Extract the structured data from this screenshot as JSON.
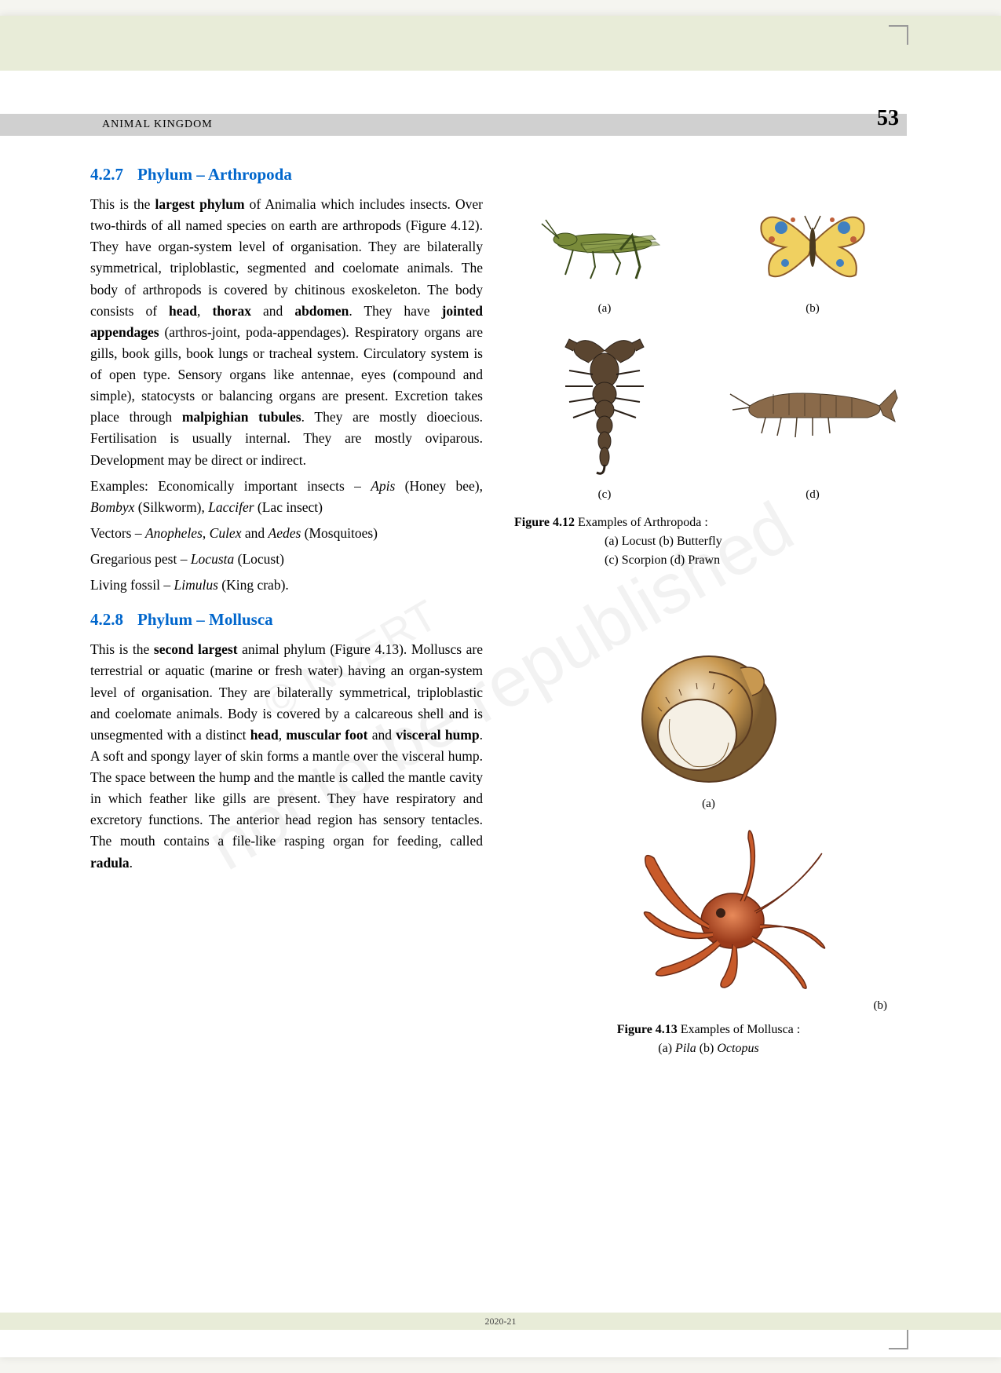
{
  "header": {
    "chapter_title": "ANIMAL KINGDOM",
    "page_number": "53"
  },
  "section1": {
    "number": "4.2.7",
    "title": "Phylum – Arthropoda",
    "paragraphs": [
      "This is the |b|largest phylum|/b| of Animalia which includes insects. Over two-thirds of all named species on earth are arthropods (Figure 4.12). They have organ-system level of organisation. They are bilaterally symmetrical, triploblastic, segmented and coelomate animals. The body of arthropods is covered by chitinous exoskeleton. The body consists of |b|head|/b|, |b|thorax|/b| and |b|abdomen|/b|. They have |b|jointed appendages|/b| (arthros-joint, poda-appendages). Respiratory organs are gills, book gills, book lungs or tracheal system. Circulatory system is of open type. Sensory organs like antennae, eyes (compound and simple), statocysts or balancing organs are present. Excretion takes place through |b|malpighian tubules|/b|. They are mostly dioecious. Fertilisation is usually internal. They are mostly oviparous. Development may be direct or indirect.",
      "Examples: Economically important insects – |i|Apis|/i| (Honey bee), |i|Bombyx|/i| (Silkworm), |i|Laccifer|/i| (Lac insect)",
      "Vectors – |i|Anopheles|/i|, |i|Culex|/i| and |i|Aedes|/i| (Mosquitoes)",
      "Gregarious pest – |i|Locusta|/i| (Locust)",
      "Living fossil – |i|Limulus|/i| (King crab)."
    ]
  },
  "section2": {
    "number": "4.2.8",
    "title": "Phylum – Mollusca",
    "paragraphs": [
      "This is the |b|second largest|/b| animal phylum (Figure 4.13). Molluscs are terrestrial or aquatic (marine or fresh water) having an organ-system level of organisation. They are bilaterally symmetrical, triploblastic and coelomate animals. Body is covered by a calcareous shell and is unsegmented with a distinct |b|head|/b|, |b|muscular foot|/b| and |b|visceral hump|/b|. A soft and spongy layer of skin forms a mantle over the visceral hump. The space between the hump and the mantle is called the mantle cavity in which feather like gills are present. They have respiratory and excretory functions. The anterior head region has sensory tentacles. The mouth contains a file-like rasping organ for feeding, called |b|radula|/b|."
    ]
  },
  "figure1": {
    "labels": [
      "(a)",
      "(b)",
      "(c)",
      "(d)"
    ],
    "caption_bold": "Figure 4.12",
    "caption_text": "Examples of Arthropoda :",
    "caption_items": "(a) Locust (b) Butterfly\n(c) Scorpion (d) Prawn",
    "items": [
      {
        "name": "locust",
        "colors": {
          "body": "#7a8b3a",
          "stroke": "#3a4a1a"
        }
      },
      {
        "name": "butterfly",
        "colors": {
          "wing": "#f0d060",
          "spot": "#4080c0",
          "edge": "#c0603a"
        }
      },
      {
        "name": "scorpion",
        "colors": {
          "body": "#5a4530",
          "stroke": "#2a2018"
        }
      },
      {
        "name": "prawn",
        "colors": {
          "body": "#8a6a4a",
          "stroke": "#4a3a28"
        }
      }
    ]
  },
  "figure2": {
    "labels": [
      "(a)",
      "(b)"
    ],
    "caption_bold": "Figure 4.13",
    "caption_text": "Examples of Mollusca :",
    "caption_items": "(a) |i|Pila|/i|  (b) |i|Octopus|/i|",
    "items": [
      {
        "name": "pila",
        "colors": {
          "shell": "#c89850",
          "shadow": "#7a5a30",
          "highlight": "#f5e8d0"
        }
      },
      {
        "name": "octopus",
        "colors": {
          "body": "#c85a2a",
          "dark": "#6a2a15",
          "spot": "#3a2015"
        }
      }
    ]
  },
  "watermarks": {
    "main": "not to be republished",
    "sub": "© NCERT"
  },
  "footer": {
    "year": "2020-21"
  }
}
